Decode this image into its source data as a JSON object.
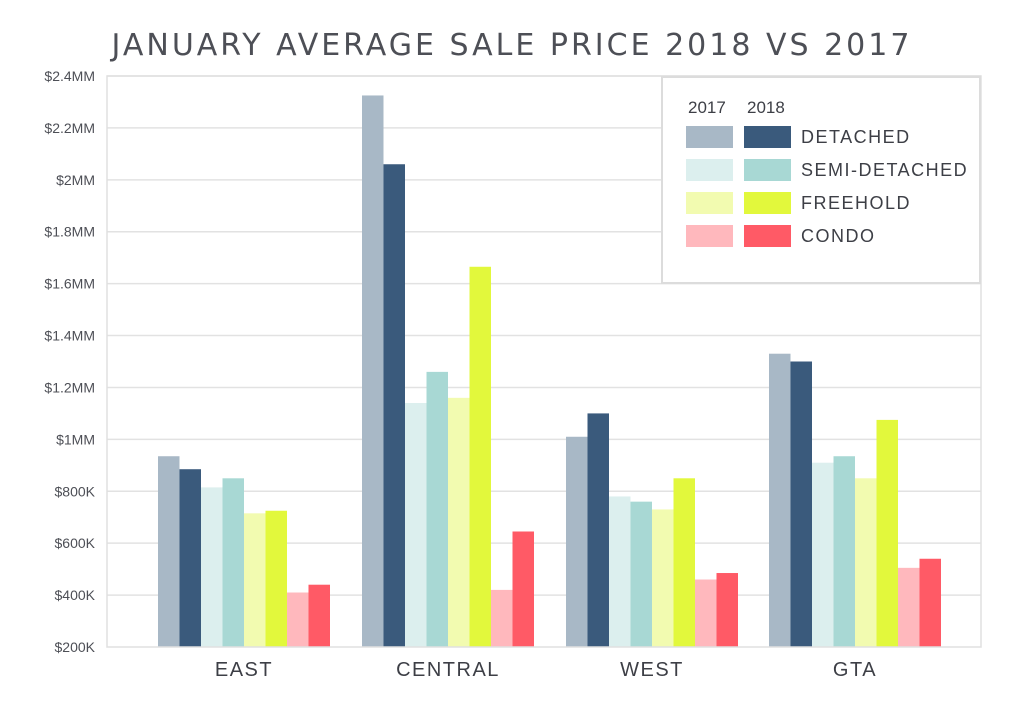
{
  "chart_data": {
    "type": "bar",
    "title": "JANUARY AVERAGE SALE PRICE 2018 VS 2017",
    "xlabel": "",
    "ylabel": "",
    "categories": [
      "EAST",
      "CENTRAL",
      "WEST",
      "GTA"
    ],
    "ylim": [
      200000,
      2400000
    ],
    "yticks": [
      {
        "value": 200000,
        "label": "$200K"
      },
      {
        "value": 400000,
        "label": "$400K"
      },
      {
        "value": 600000,
        "label": "$600K"
      },
      {
        "value": 800000,
        "label": "$800K"
      },
      {
        "value": 1000000,
        "label": "$1MM"
      },
      {
        "value": 1200000,
        "label": "$1.2MM"
      },
      {
        "value": 1400000,
        "label": "$1.4MM"
      },
      {
        "value": 1600000,
        "label": "$1.6MM"
      },
      {
        "value": 1800000,
        "label": "$1.8MM"
      },
      {
        "value": 2000000,
        "label": "$2MM"
      },
      {
        "value": 2200000,
        "label": "$2.2MM"
      },
      {
        "value": 2400000,
        "label": "$2.4MM"
      }
    ],
    "grid": true,
    "legend": {
      "placement": "top-right",
      "year_headers": [
        "2017",
        "2018"
      ],
      "entries": [
        {
          "label": "DETACHED",
          "color_2017": "#a8b8c6",
          "color_2018": "#3a5a7c"
        },
        {
          "label": "SEMI-DETACHED",
          "color_2017": "#dcefee",
          "color_2018": "#a8d8d4"
        },
        {
          "label": "FREEHOLD",
          "color_2017": "#f2fbb0",
          "color_2018": "#e2f83c"
        },
        {
          "label": "CONDO",
          "color_2017": "#ffb8bd",
          "color_2018": "#ff5a66"
        }
      ]
    },
    "series": [
      {
        "type": "DETACHED",
        "year": "2017",
        "color": "#a8b8c6",
        "values": [
          935000,
          2325000,
          1010000,
          1330000
        ]
      },
      {
        "type": "DETACHED",
        "year": "2018",
        "color": "#3a5a7c",
        "values": [
          885000,
          2060000,
          1100000,
          1300000
        ]
      },
      {
        "type": "SEMI-DETACHED",
        "year": "2017",
        "color": "#dcefee",
        "values": [
          815000,
          1140000,
          780000,
          910000
        ]
      },
      {
        "type": "SEMI-DETACHED",
        "year": "2018",
        "color": "#a8d8d4",
        "values": [
          850000,
          1260000,
          760000,
          935000
        ]
      },
      {
        "type": "FREEHOLD",
        "year": "2017",
        "color": "#f2fbb0",
        "values": [
          715000,
          1160000,
          730000,
          850000
        ]
      },
      {
        "type": "FREEHOLD",
        "year": "2018",
        "color": "#e2f83c",
        "values": [
          725000,
          1665000,
          850000,
          1075000
        ]
      },
      {
        "type": "CONDO",
        "year": "2017",
        "color": "#ffb8bd",
        "values": [
          410000,
          420000,
          460000,
          505000
        ]
      },
      {
        "type": "CONDO",
        "year": "2018",
        "color": "#ff5a66",
        "values": [
          440000,
          645000,
          485000,
          540000
        ]
      }
    ]
  }
}
